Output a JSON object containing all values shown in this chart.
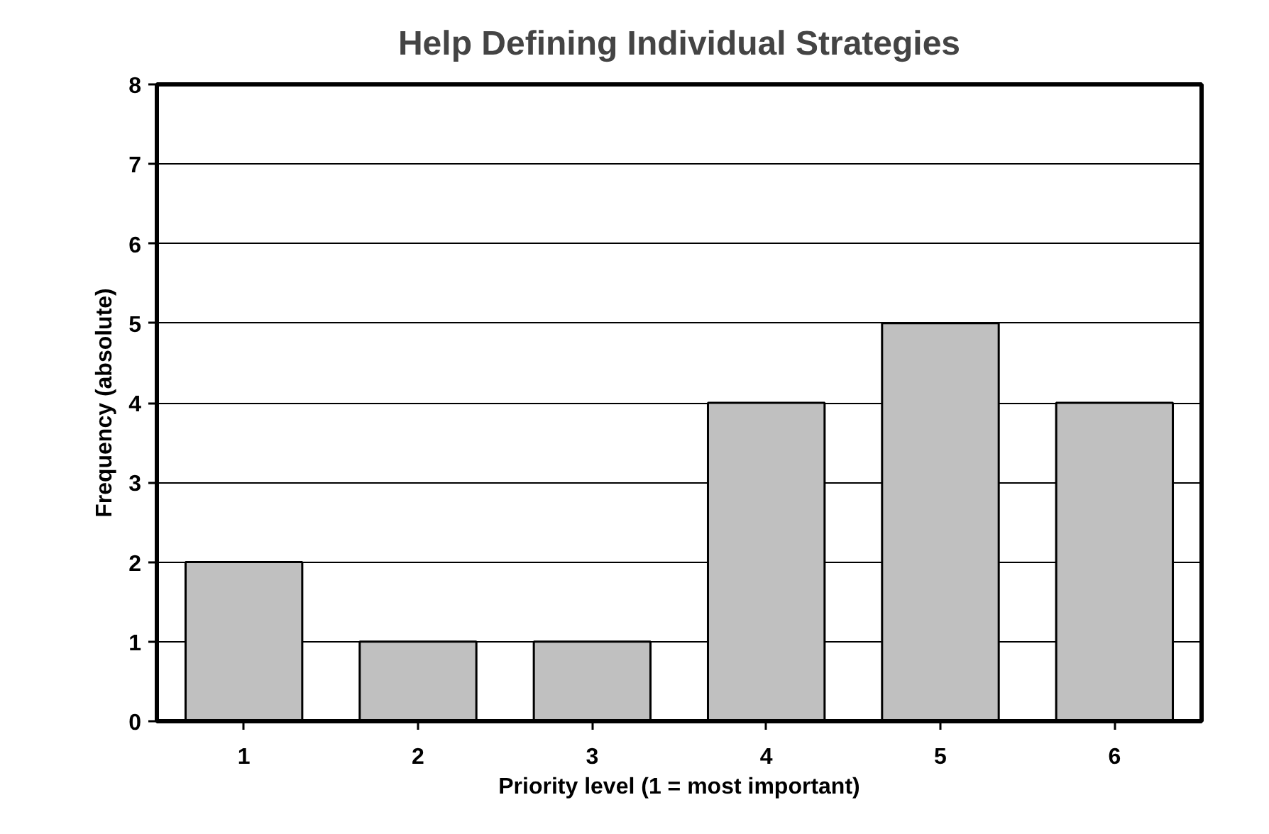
{
  "chart_data": {
    "type": "bar",
    "title": "Help Defining Individual Strategies",
    "xlabel": "Priority level (1 = most important)",
    "ylabel": "Frequency (absolute)",
    "categories": [
      "1",
      "2",
      "3",
      "4",
      "5",
      "6"
    ],
    "values": [
      2,
      1,
      1,
      4,
      5,
      4
    ],
    "color": "#c0c0c0",
    "ylim": [
      0,
      8
    ],
    "yticks": [
      0,
      1,
      2,
      3,
      4,
      5,
      6,
      7,
      8
    ],
    "grid": "y"
  }
}
